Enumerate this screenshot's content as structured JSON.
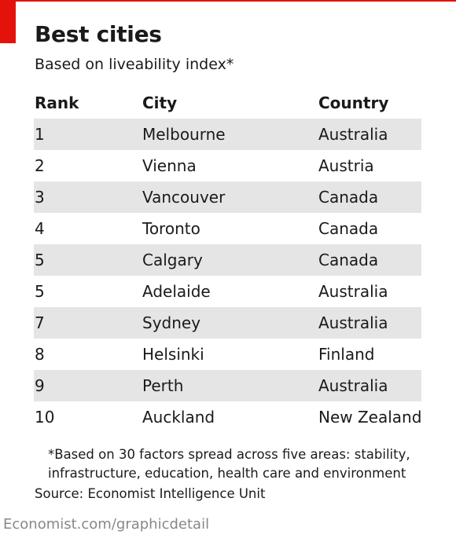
{
  "title": "Best cities",
  "subtitle": "Based on liveability index*",
  "chart_data": {
    "type": "table",
    "title": "Best cities",
    "subtitle": "Based on liveability index*",
    "columns": [
      "Rank",
      "City",
      "Country"
    ],
    "rows": [
      [
        "1",
        "Melbourne",
        "Australia"
      ],
      [
        "2",
        "Vienna",
        "Austria"
      ],
      [
        "3",
        "Vancouver",
        "Canada"
      ],
      [
        "4",
        "Toronto",
        "Canada"
      ],
      [
        "5",
        "Calgary",
        "Canada"
      ],
      [
        "5",
        "Adelaide",
        "Australia"
      ],
      [
        "7",
        "Sydney",
        "Australia"
      ],
      [
        "8",
        "Helsinki",
        "Finland"
      ],
      [
        "9",
        "Perth",
        "Australia"
      ],
      [
        "10",
        "Auckland",
        "New Zealand"
      ]
    ]
  },
  "footnote": {
    "line1": "*Based on 30 factors spread across five areas: stability,",
    "line2": "infrastructure, education, health care and environment"
  },
  "source": "Source: Economist Intelligence Unit",
  "credit": "Economist.com/graphicdetail",
  "colors": {
    "accent": "#e3120b",
    "row_shade": "#e5e5e5",
    "credit_text": "#888888"
  }
}
